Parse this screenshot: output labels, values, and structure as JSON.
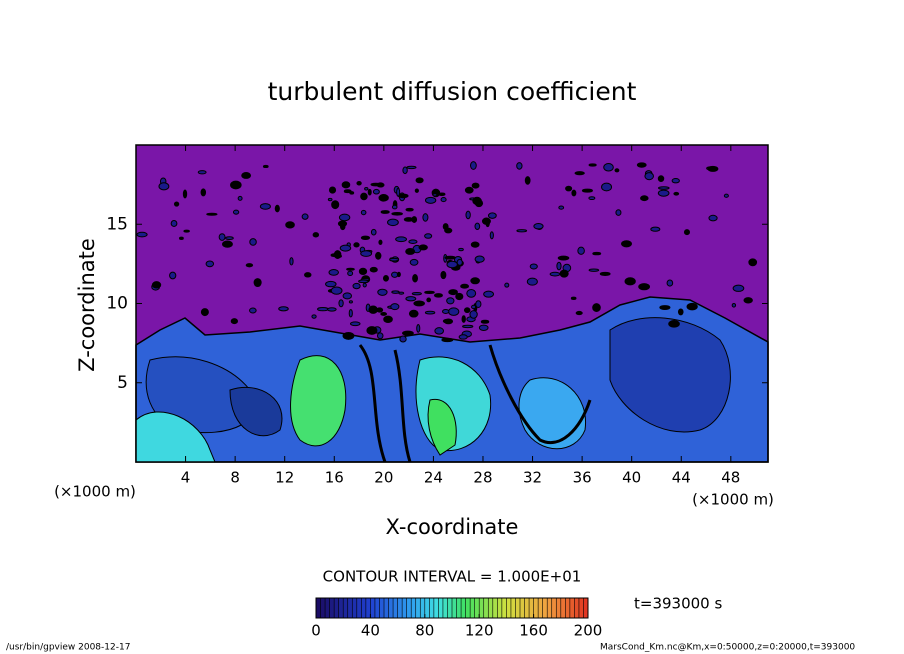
{
  "chart_data": {
    "type": "contour",
    "title": "turbulent diffusion coefficient",
    "xlabel": "X-coordinate",
    "ylabel": "Z-coordinate",
    "x_unit": "(×1000 m)",
    "xlim": [
      0,
      51
    ],
    "xticks": [
      4,
      8,
      12,
      16,
      20,
      24,
      28,
      32,
      36,
      40,
      44,
      48
    ],
    "ylim": [
      0,
      20
    ],
    "yticks": [
      5,
      10,
      15
    ],
    "contour_interval": "CONTOUR INTERVAL = 1.000E+01",
    "colorbar": {
      "lim": [
        0,
        200
      ],
      "ticks": [
        0,
        40,
        80,
        120,
        160,
        200
      ]
    },
    "time_label": "t=393000 s",
    "footer_left": "/usr/bin/gpview   2008-12-17",
    "footer_right": "MarsCond_Km.nc@Km,x=0:50000,z=0:20000,t=393000"
  }
}
